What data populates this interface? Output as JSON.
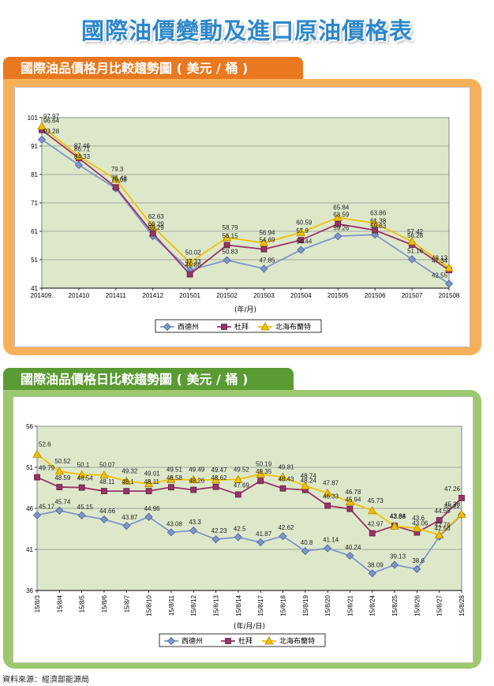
{
  "page": {
    "title": "國際油價變動及進口原油價格表",
    "section1_title": "國際油品價格月比較趨勢圖 ( 美元 / 桶 )",
    "section2_title": "國際油品價格日比較趨勢圖 ( 美元 / 桶 )",
    "source": "資料來源：經濟部能源局"
  },
  "colors": {
    "wti": "#8096c8",
    "dubai": "#993366",
    "brent": "#f0c000",
    "plot_bg": "#dde8cb",
    "grid": "#909090"
  },
  "chart_data": [
    {
      "type": "line",
      "xlabel": "(年/月)",
      "ylim": [
        41,
        101
      ],
      "yticks": [
        41,
        51,
        61,
        71,
        81,
        91,
        101
      ],
      "categories": [
        "201409.",
        "201410",
        "201411",
        "201412",
        "201501",
        "201502",
        "201503",
        "201504",
        "201505",
        "201506",
        "201507",
        "201508"
      ],
      "series": [
        {
          "name": "西德州",
          "values": [
            93.28,
            84.33,
            76.08,
            59.29,
            47.33,
            50.83,
            47.85,
            54.44,
            59.26,
            59.83,
            51.16,
            42.55
          ],
          "labels": [
            "93.28",
            "84.33",
            "76.08",
            "59.29",
            "47.33",
            "50.83",
            "47.85",
            "54.44",
            "59.26",
            "59.83",
            "51.16",
            "42.55"
          ]
        },
        {
          "name": "杜拜",
          "values": [
            96.64,
            86.71,
            76.48,
            60.29,
            45.86,
            56.15,
            54.69,
            57.9,
            63.59,
            61.38,
            56.28,
            47.34
          ],
          "labels": [
            "96.64",
            "86.71",
            "76.48",
            "60.29",
            "45.86",
            "56.15",
            "54.69",
            "57.9",
            "63.59",
            "61.38",
            "56.28",
            "47.34"
          ]
        },
        {
          "name": "北海布蘭特",
          "values": [
            97.97,
            87.46,
            79.3,
            62.63,
            50.02,
            58.79,
            56.94,
            60.59,
            65.84,
            63.86,
            57.42,
            48.13
          ],
          "labels": [
            "97.97",
            "87.46",
            "79.3",
            "62.63",
            "50.02",
            "58.79",
            "56.94",
            "60.59",
            "65.84",
            "63.86",
            "57.42",
            "48.13"
          ]
        }
      ],
      "legend": "bottom"
    },
    {
      "type": "line",
      "xlabel": "(年/月/日)",
      "ylim": [
        36,
        56
      ],
      "yticks": [
        36,
        41,
        46,
        51,
        56
      ],
      "categories": [
        "15/8/3",
        "15/8/4",
        "15/8/5",
        "15/8/6",
        "15/8/7",
        "15/8/10",
        "15/8/11",
        "15/8/12",
        "15/8/13",
        "15/8/14",
        "15/8/17",
        "15/8/18",
        "15/8/19",
        "15/8/20",
        "15/8/21",
        "15/8/24",
        "15/8/25",
        "15/8/26",
        "15/8/27",
        "15/8/28"
      ],
      "series": [
        {
          "name": "西德州",
          "values": [
            45.17,
            45.74,
            45.15,
            44.66,
            43.87,
            44.96,
            43.08,
            43.3,
            42.23,
            42.5,
            41.87,
            42.62,
            40.8,
            41.14,
            40.24,
            38.09,
            39.13,
            38.6,
            42.56,
            45.22
          ],
          "labels": [
            "45.17",
            "45.74",
            "45.15",
            "44.66",
            "43.87",
            "44.96",
            "43.08",
            "43.3",
            "42.23",
            "42.5",
            "41.87",
            "42.62",
            "40.8",
            "41.14",
            "40.24",
            "38.09",
            "39.13",
            "38.6",
            "42.56",
            "45.22"
          ]
        },
        {
          "name": "杜拜",
          "values": [
            49.79,
            48.59,
            48.54,
            48.11,
            48.1,
            48.11,
            48.58,
            48.26,
            48.62,
            47.69,
            49.35,
            48.43,
            48.24,
            46.33,
            45.94,
            42.97,
            43.88,
            43.06,
            44.55,
            47.26
          ],
          "labels": [
            "49.79",
            "48.59",
            "48.54",
            "48.11",
            "48.1",
            "48.11",
            "48.58",
            "48.26",
            "48.62",
            "47.69",
            "49.35",
            "48.43",
            "48.24",
            "46.33",
            "45.94",
            "42.97",
            "43.88",
            "43.06",
            "44.55",
            "47.26"
          ]
        },
        {
          "name": "北海布蘭特",
          "values": [
            52.6,
            50.52,
            50.1,
            50.07,
            49.32,
            49.01,
            49.51,
            49.49,
            49.47,
            49.52,
            50.19,
            49.81,
            48.74,
            47.87,
            46.78,
            45.73,
            43.84,
            43.6,
            42.76,
            45.28
          ],
          "labels": [
            "52.6",
            "50.52",
            "50.1",
            "50.07",
            "49.32",
            "49.01",
            "49.51",
            "49.49",
            "49.47",
            "49.52",
            "50.19",
            "49.81",
            "48.74",
            "47.87",
            "46.78",
            "45.73",
            "43.84",
            "43.6",
            "42.76",
            "45.28"
          ]
        }
      ],
      "legend": "bottom"
    }
  ]
}
